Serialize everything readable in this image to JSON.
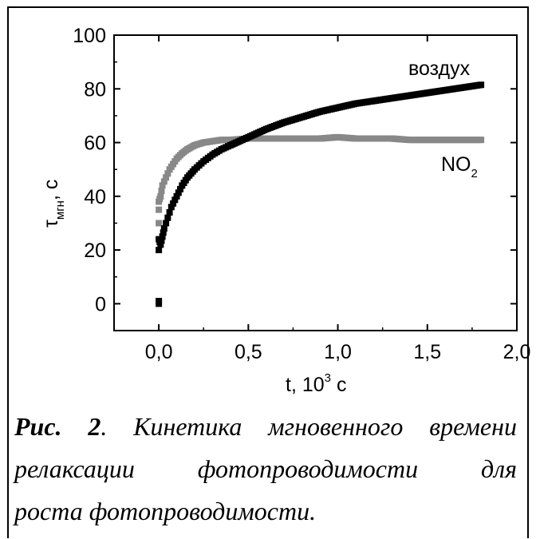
{
  "chart_data": {
    "type": "scatter",
    "xlabel": "t, 10",
    "xlabel_sup": "3",
    "xlabel_unit": " с",
    "ylabel_main": "τ",
    "ylabel_sub": "мгн",
    "ylabel_unit": ", с",
    "xlim": [
      -0.25,
      2.0
    ],
    "ylim": [
      -10,
      100
    ],
    "x_ticks": [
      0.0,
      0.5,
      1.0,
      1.5,
      2.0
    ],
    "x_tick_labels": [
      "0,0",
      "0,5",
      "1,0",
      "1,5",
      "2,0"
    ],
    "y_ticks": [
      0,
      20,
      40,
      60,
      80,
      100
    ],
    "y_tick_labels": [
      "0",
      "20",
      "40",
      "60",
      "80",
      "100"
    ],
    "series": [
      {
        "name": "NO",
        "name_sub": "2",
        "color": "#888888",
        "x": [
          0.0,
          0.0,
          0.0,
          0.01,
          0.02,
          0.04,
          0.06,
          0.08,
          0.1,
          0.13,
          0.16,
          0.2,
          0.25,
          0.3,
          0.35,
          0.4,
          0.5,
          0.6,
          0.7,
          0.8,
          0.9,
          1.0,
          1.1,
          1.2,
          1.3,
          1.4,
          1.5,
          1.6,
          1.7,
          1.8
        ],
        "y": [
          30,
          35,
          38,
          40,
          44,
          47,
          50,
          52,
          54,
          56,
          57.5,
          59,
          60,
          60.5,
          61,
          61,
          61.5,
          61.5,
          61.5,
          61.5,
          61.5,
          62,
          61.5,
          61.5,
          61.5,
          61,
          61,
          61,
          61,
          61
        ]
      },
      {
        "name": "воздух",
        "color": "#000000",
        "x": [
          0.0,
          0.0,
          0.0,
          0.0,
          0.01,
          0.02,
          0.03,
          0.05,
          0.07,
          0.1,
          0.13,
          0.16,
          0.2,
          0.25,
          0.3,
          0.35,
          0.4,
          0.5,
          0.6,
          0.7,
          0.8,
          0.9,
          1.0,
          1.1,
          1.2,
          1.3,
          1.4,
          1.5,
          1.6,
          1.7,
          1.8
        ],
        "y": [
          0,
          1,
          20,
          24,
          22,
          25,
          28,
          32,
          36,
          40,
          44,
          47,
          50,
          53,
          55.5,
          57.5,
          59,
          62,
          65,
          67.5,
          69.5,
          71.5,
          73,
          74.5,
          75.5,
          76.5,
          77.5,
          78.5,
          79.5,
          80.5,
          81.5
        ]
      }
    ],
    "grid": false,
    "legend": "inline labels"
  },
  "caption": {
    "fig_no": "Рис. 2",
    "line1": ". Кинетика мгновенного времени",
    "line2": "релаксации фотопроводимости для",
    "line3": "роста фотопроводимости."
  }
}
